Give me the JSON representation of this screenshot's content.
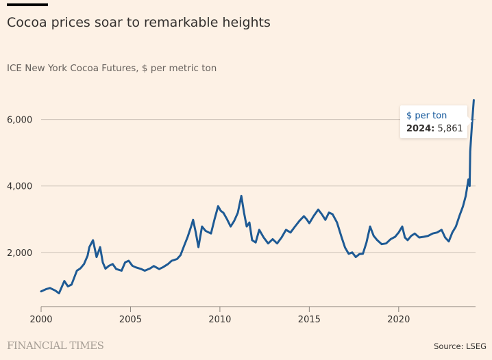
{
  "header": {
    "title": "Cocoa prices soar to remarkable heights",
    "subtitle": "ICE New York Cocoa Futures, $ per metric ton"
  },
  "chart_data": {
    "type": "line",
    "title": "Cocoa prices soar to remarkable heights",
    "subtitle": "ICE New York Cocoa Futures, $ per metric ton",
    "xlabel": "",
    "ylabel": "$ per metric ton",
    "xlim": [
      2000,
      2024.3
    ],
    "ylim": [
      370,
      6650
    ],
    "x_ticks": [
      2000,
      2005,
      2010,
      2015,
      2020
    ],
    "x_tick_labels": [
      "2000",
      "2005",
      "2010",
      "2015",
      "2020"
    ],
    "y_ticks": [
      2000,
      4000,
      6000
    ],
    "y_tick_labels": [
      "2,000",
      "4,000",
      "6,000"
    ],
    "grid": "horizontal",
    "color": "#1e5a94",
    "series": [
      {
        "name": "$ per ton",
        "points": [
          [
            2000,
            830
          ],
          [
            2000.3,
            900
          ],
          [
            2000.5,
            930
          ],
          [
            2000.8,
            850
          ],
          [
            2001,
            770
          ],
          [
            2001.3,
            1140
          ],
          [
            2001.5,
            980
          ],
          [
            2001.7,
            1030
          ],
          [
            2002,
            1450
          ],
          [
            2002.2,
            1520
          ],
          [
            2002.4,
            1650
          ],
          [
            2002.6,
            1900
          ],
          [
            2002.7,
            2160
          ],
          [
            2002.9,
            2370
          ],
          [
            2003.1,
            1860
          ],
          [
            2003.3,
            2160
          ],
          [
            2003.45,
            1700
          ],
          [
            2003.6,
            1510
          ],
          [
            2003.8,
            1600
          ],
          [
            2004,
            1650
          ],
          [
            2004.2,
            1500
          ],
          [
            2004.5,
            1450
          ],
          [
            2004.7,
            1700
          ],
          [
            2004.9,
            1750
          ],
          [
            2005.1,
            1600
          ],
          [
            2005.3,
            1550
          ],
          [
            2005.6,
            1500
          ],
          [
            2005.8,
            1450
          ],
          [
            2006.1,
            1520
          ],
          [
            2006.3,
            1590
          ],
          [
            2006.6,
            1500
          ],
          [
            2006.8,
            1550
          ],
          [
            2007.1,
            1650
          ],
          [
            2007.3,
            1750
          ],
          [
            2007.6,
            1800
          ],
          [
            2007.8,
            1920
          ],
          [
            2008,
            2200
          ],
          [
            2008.2,
            2470
          ],
          [
            2008.4,
            2800
          ],
          [
            2008.5,
            2980
          ],
          [
            2008.65,
            2600
          ],
          [
            2008.8,
            2160
          ],
          [
            2009.0,
            2780
          ],
          [
            2009.2,
            2650
          ],
          [
            2009.5,
            2570
          ],
          [
            2009.7,
            3000
          ],
          [
            2009.9,
            3390
          ],
          [
            2010.05,
            3250
          ],
          [
            2010.2,
            3190
          ],
          [
            2010.4,
            3000
          ],
          [
            2010.6,
            2780
          ],
          [
            2010.8,
            2950
          ],
          [
            2011.0,
            3190
          ],
          [
            2011.2,
            3700
          ],
          [
            2011.35,
            3200
          ],
          [
            2011.5,
            2780
          ],
          [
            2011.65,
            2900
          ],
          [
            2011.8,
            2370
          ],
          [
            2012.0,
            2300
          ],
          [
            2012.2,
            2680
          ],
          [
            2012.45,
            2450
          ],
          [
            2012.7,
            2270
          ],
          [
            2012.95,
            2400
          ],
          [
            2013.2,
            2270
          ],
          [
            2013.45,
            2450
          ],
          [
            2013.7,
            2680
          ],
          [
            2013.95,
            2600
          ],
          [
            2014.2,
            2780
          ],
          [
            2014.45,
            2950
          ],
          [
            2014.7,
            3090
          ],
          [
            2014.85,
            3000
          ],
          [
            2015.0,
            2880
          ],
          [
            2015.25,
            3100
          ],
          [
            2015.5,
            3290
          ],
          [
            2015.7,
            3150
          ],
          [
            2015.9,
            2980
          ],
          [
            2016.1,
            3200
          ],
          [
            2016.3,
            3150
          ],
          [
            2016.55,
            2900
          ],
          [
            2016.8,
            2470
          ],
          [
            2017.0,
            2150
          ],
          [
            2017.2,
            1960
          ],
          [
            2017.4,
            2000
          ],
          [
            2017.6,
            1860
          ],
          [
            2017.8,
            1950
          ],
          [
            2018.0,
            1960
          ],
          [
            2018.2,
            2300
          ],
          [
            2018.4,
            2780
          ],
          [
            2018.6,
            2500
          ],
          [
            2018.8,
            2370
          ],
          [
            2019.05,
            2250
          ],
          [
            2019.3,
            2270
          ],
          [
            2019.55,
            2400
          ],
          [
            2019.8,
            2470
          ],
          [
            2020.0,
            2600
          ],
          [
            2020.2,
            2780
          ],
          [
            2020.35,
            2450
          ],
          [
            2020.5,
            2370
          ],
          [
            2020.7,
            2500
          ],
          [
            2020.9,
            2570
          ],
          [
            2021.15,
            2450
          ],
          [
            2021.4,
            2470
          ],
          [
            2021.65,
            2500
          ],
          [
            2021.9,
            2570
          ],
          [
            2022.15,
            2600
          ],
          [
            2022.4,
            2680
          ],
          [
            2022.6,
            2450
          ],
          [
            2022.8,
            2330
          ],
          [
            2023.0,
            2600
          ],
          [
            2023.2,
            2780
          ],
          [
            2023.4,
            3100
          ],
          [
            2023.6,
            3390
          ],
          [
            2023.75,
            3700
          ],
          [
            2023.9,
            4200
          ],
          [
            2023.97,
            4000
          ],
          [
            2024.0,
            5040
          ],
          [
            2024.1,
            5860
          ],
          [
            2024.2,
            6580
          ]
        ]
      }
    ]
  },
  "tooltip": {
    "title": "$ per ton",
    "year": "2024:",
    "value": "5,861"
  },
  "footer": {
    "logo": "FINANCIAL TIMES",
    "source": "Source: LSEG"
  }
}
